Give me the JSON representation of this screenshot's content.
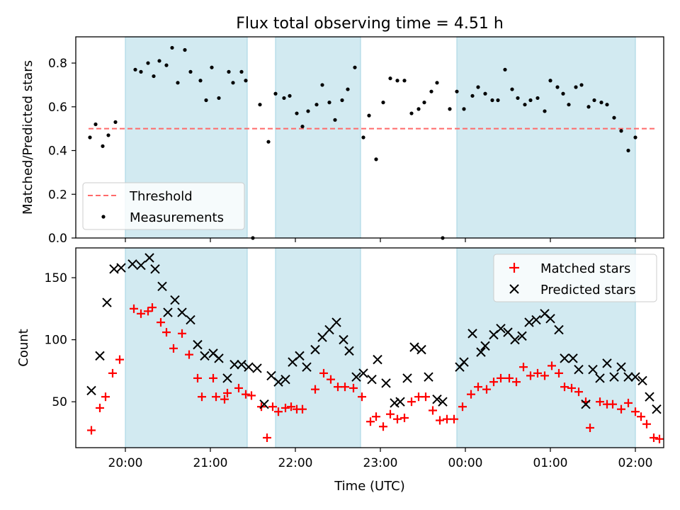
{
  "figure": {
    "title": "Flux total observing time = 4.51 h",
    "xlabel": "Time (UTC)",
    "x_ticks": [
      "20:00",
      "21:00",
      "22:00",
      "23:00",
      "00:00",
      "01:00",
      "02:00"
    ],
    "shade_color": "#add8e6"
  },
  "chart_data": [
    {
      "type": "scatter",
      "ylabel": "Matched/Predicted stars",
      "ylim": [
        0,
        0.92
      ],
      "y_ticks": [
        "0.0",
        "0.2",
        "0.4",
        "0.6",
        "0.8"
      ],
      "legend_position": "lower-left",
      "shaded_ranges": [
        [
          "20:00",
          "21:26"
        ],
        [
          "21:46",
          "22:46"
        ],
        [
          "23:54",
          "02:00"
        ]
      ],
      "threshold": {
        "name": "Threshold",
        "value": 0.5,
        "x_range": [
          "19:34",
          "02:15"
        ],
        "color": "#ff6a6a"
      },
      "series": [
        {
          "name": "Measurements",
          "color": "#000000",
          "points": [
            [
              "19:35",
              0.46
            ],
            [
              "19:39",
              0.52
            ],
            [
              "19:44",
              0.42
            ],
            [
              "19:48",
              0.47
            ],
            [
              "19:53",
              0.53
            ],
            [
              "20:07",
              0.77
            ],
            [
              "20:11",
              0.76
            ],
            [
              "20:16",
              0.8
            ],
            [
              "20:20",
              0.74
            ],
            [
              "20:24",
              0.81
            ],
            [
              "20:29",
              0.79
            ],
            [
              "20:33",
              0.87
            ],
            [
              "20:37",
              0.71
            ],
            [
              "20:42",
              0.86
            ],
            [
              "20:46",
              0.76
            ],
            [
              "20:53",
              0.72
            ],
            [
              "20:57",
              0.63
            ],
            [
              "21:01",
              0.78
            ],
            [
              "21:06",
              0.64
            ],
            [
              "21:13",
              0.76
            ],
            [
              "21:16",
              0.71
            ],
            [
              "21:22",
              0.76
            ],
            [
              "21:25",
              0.72
            ],
            [
              "21:30",
              0.0
            ],
            [
              "21:35",
              0.61
            ],
            [
              "21:41",
              0.44
            ],
            [
              "21:46",
              0.66
            ],
            [
              "21:52",
              0.64
            ],
            [
              "21:56",
              0.65
            ],
            [
              "22:01",
              0.57
            ],
            [
              "22:05",
              0.51
            ],
            [
              "22:09",
              0.58
            ],
            [
              "22:15",
              0.61
            ],
            [
              "22:19",
              0.7
            ],
            [
              "22:24",
              0.62
            ],
            [
              "22:28",
              0.54
            ],
            [
              "22:33",
              0.63
            ],
            [
              "22:37",
              0.68
            ],
            [
              "22:42",
              0.78
            ],
            [
              "22:48",
              0.46
            ],
            [
              "22:52",
              0.56
            ],
            [
              "22:57",
              0.36
            ],
            [
              "23:02",
              0.62
            ],
            [
              "23:07",
              0.73
            ],
            [
              "23:12",
              0.72
            ],
            [
              "23:17",
              0.72
            ],
            [
              "23:22",
              0.57
            ],
            [
              "23:27",
              0.59
            ],
            [
              "23:31",
              0.62
            ],
            [
              "23:36",
              0.67
            ],
            [
              "23:40",
              0.71
            ],
            [
              "23:44",
              0.0
            ],
            [
              "23:49",
              0.59
            ],
            [
              "23:54",
              0.67
            ],
            [
              "23:59",
              0.59
            ],
            [
              "00:05",
              0.65
            ],
            [
              "00:09",
              0.69
            ],
            [
              "00:14",
              0.66
            ],
            [
              "00:19",
              0.63
            ],
            [
              "00:23",
              0.63
            ],
            [
              "00:28",
              0.77
            ],
            [
              "00:33",
              0.68
            ],
            [
              "00:37",
              0.64
            ],
            [
              "00:42",
              0.61
            ],
            [
              "00:46",
              0.63
            ],
            [
              "00:51",
              0.64
            ],
            [
              "00:56",
              0.58
            ],
            [
              "01:00",
              0.72
            ],
            [
              "01:05",
              0.69
            ],
            [
              "01:09",
              0.66
            ],
            [
              "01:13",
              0.61
            ],
            [
              "01:18",
              0.69
            ],
            [
              "01:22",
              0.7
            ],
            [
              "01:27",
              0.6
            ],
            [
              "01:31",
              0.63
            ],
            [
              "01:36",
              0.62
            ],
            [
              "01:40",
              0.61
            ],
            [
              "01:45",
              0.55
            ],
            [
              "01:50",
              0.49
            ],
            [
              "01:55",
              0.4
            ],
            [
              "02:00",
              0.46
            ]
          ]
        }
      ]
    },
    {
      "type": "scatter",
      "ylabel": "Count",
      "ylim": [
        13,
        174
      ],
      "y_ticks": [
        "50",
        "100",
        "150"
      ],
      "legend_position": "top-right",
      "shaded_ranges": [
        [
          "20:00",
          "21:26"
        ],
        [
          "21:46",
          "22:46"
        ],
        [
          "23:54",
          "02:00"
        ]
      ],
      "series": [
        {
          "name": "Matched stars",
          "marker": "plus",
          "color": "#ff0000",
          "points": [
            [
              "19:36",
              27
            ],
            [
              "19:42",
              45
            ],
            [
              "19:46",
              54
            ],
            [
              "19:51",
              73
            ],
            [
              "19:56",
              84
            ],
            [
              "20:06",
              125
            ],
            [
              "20:11",
              121
            ],
            [
              "20:16",
              123
            ],
            [
              "20:19",
              126
            ],
            [
              "20:25",
              114
            ],
            [
              "20:29",
              106
            ],
            [
              "20:34",
              93
            ],
            [
              "20:40",
              105
            ],
            [
              "20:45",
              88
            ],
            [
              "20:51",
              69
            ],
            [
              "20:54",
              54
            ],
            [
              "21:02",
              69
            ],
            [
              "21:04",
              54
            ],
            [
              "21:10",
              52
            ],
            [
              "21:12",
              57
            ],
            [
              "21:20",
              61
            ],
            [
              "21:25",
              56
            ],
            [
              "21:29",
              55
            ],
            [
              "21:36",
              46
            ],
            [
              "21:40",
              21
            ],
            [
              "21:44",
              46
            ],
            [
              "21:48",
              42
            ],
            [
              "21:53",
              45
            ],
            [
              "21:57",
              46
            ],
            [
              "22:01",
              44
            ],
            [
              "22:05",
              44
            ],
            [
              "22:14",
              60
            ],
            [
              "22:20",
              73
            ],
            [
              "22:25",
              68
            ],
            [
              "22:30",
              62
            ],
            [
              "22:35",
              62
            ],
            [
              "22:41",
              61
            ],
            [
              "22:47",
              54
            ],
            [
              "22:53",
              34
            ],
            [
              "22:57",
              38
            ],
            [
              "23:02",
              30
            ],
            [
              "23:07",
              40
            ],
            [
              "23:12",
              36
            ],
            [
              "23:17",
              37
            ],
            [
              "23:22",
              50
            ],
            [
              "23:27",
              54
            ],
            [
              "23:32",
              54
            ],
            [
              "23:37",
              43
            ],
            [
              "23:42",
              35
            ],
            [
              "23:47",
              36
            ],
            [
              "23:52",
              36
            ],
            [
              "23:58",
              46
            ],
            [
              "00:04",
              56
            ],
            [
              "00:09",
              62
            ],
            [
              "00:15",
              60
            ],
            [
              "00:20",
              66
            ],
            [
              "00:25",
              69
            ],
            [
              "00:31",
              69
            ],
            [
              "00:36",
              66
            ],
            [
              "00:41",
              78
            ],
            [
              "00:46",
              71
            ],
            [
              "00:51",
              73
            ],
            [
              "00:56",
              71
            ],
            [
              "01:01",
              79
            ],
            [
              "01:06",
              73
            ],
            [
              "01:10",
              62
            ],
            [
              "01:15",
              61
            ],
            [
              "01:20",
              58
            ],
            [
              "01:25",
              50
            ],
            [
              "01:28",
              29
            ],
            [
              "01:35",
              50
            ],
            [
              "01:40",
              48
            ],
            [
              "01:44",
              48
            ],
            [
              "01:50",
              44
            ],
            [
              "01:55",
              49
            ],
            [
              "02:00",
              42
            ],
            [
              "02:04",
              38
            ],
            [
              "02:08",
              32
            ],
            [
              "02:13",
              21
            ],
            [
              "02:17",
              20
            ]
          ]
        },
        {
          "name": "Predicted stars",
          "marker": "x",
          "color": "#000000",
          "points": [
            [
              "19:36",
              59
            ],
            [
              "19:42",
              87
            ],
            [
              "19:47",
              130
            ],
            [
              "19:52",
              157
            ],
            [
              "19:57",
              158
            ],
            [
              "20:05",
              161
            ],
            [
              "20:11",
              160
            ],
            [
              "20:17",
              166
            ],
            [
              "20:21",
              157
            ],
            [
              "20:26",
              143
            ],
            [
              "20:30",
              122
            ],
            [
              "20:35",
              132
            ],
            [
              "20:40",
              122
            ],
            [
              "20:46",
              116
            ],
            [
              "20:51",
              96
            ],
            [
              "20:56",
              87
            ],
            [
              "21:02",
              89
            ],
            [
              "21:06",
              85
            ],
            [
              "21:12",
              69
            ],
            [
              "21:17",
              80
            ],
            [
              "21:22",
              80
            ],
            [
              "21:27",
              78
            ],
            [
              "21:33",
              77
            ],
            [
              "21:38",
              48
            ],
            [
              "21:43",
              71
            ],
            [
              "21:48",
              66
            ],
            [
              "21:53",
              68
            ],
            [
              "21:58",
              82
            ],
            [
              "22:03",
              87
            ],
            [
              "22:08",
              78
            ],
            [
              "22:14",
              92
            ],
            [
              "22:19",
              102
            ],
            [
              "22:24",
              108
            ],
            [
              "22:29",
              114
            ],
            [
              "22:34",
              100
            ],
            [
              "22:38",
              91
            ],
            [
              "22:43",
              70
            ],
            [
              "22:48",
              73
            ],
            [
              "22:54",
              68
            ],
            [
              "22:58",
              84
            ],
            [
              "23:04",
              65
            ],
            [
              "23:10",
              49
            ],
            [
              "23:14",
              50
            ],
            [
              "23:19",
              69
            ],
            [
              "23:24",
              94
            ],
            [
              "23:29",
              92
            ],
            [
              "23:34",
              70
            ],
            [
              "23:40",
              52
            ],
            [
              "23:44",
              50
            ],
            [
              "23:56",
              78
            ],
            [
              "23:59",
              82
            ],
            [
              "00:05",
              105
            ],
            [
              "00:11",
              90
            ],
            [
              "00:14",
              95
            ],
            [
              "00:20",
              104
            ],
            [
              "00:25",
              109
            ],
            [
              "00:30",
              106
            ],
            [
              "00:35",
              100
            ],
            [
              "00:40",
              103
            ],
            [
              "00:45",
              114
            ],
            [
              "00:50",
              116
            ],
            [
              "00:56",
              121
            ],
            [
              "01:00",
              117
            ],
            [
              "01:06",
              108
            ],
            [
              "01:10",
              85
            ],
            [
              "01:16",
              85
            ],
            [
              "01:20",
              76
            ],
            [
              "01:25",
              48
            ],
            [
              "01:30",
              76
            ],
            [
              "01:35",
              69
            ],
            [
              "01:40",
              81
            ],
            [
              "01:45",
              70
            ],
            [
              "01:50",
              78
            ],
            [
              "01:55",
              70
            ],
            [
              "02:00",
              70
            ],
            [
              "02:05",
              67
            ],
            [
              "02:10",
              54
            ],
            [
              "02:15",
              44
            ]
          ]
        }
      ]
    }
  ]
}
